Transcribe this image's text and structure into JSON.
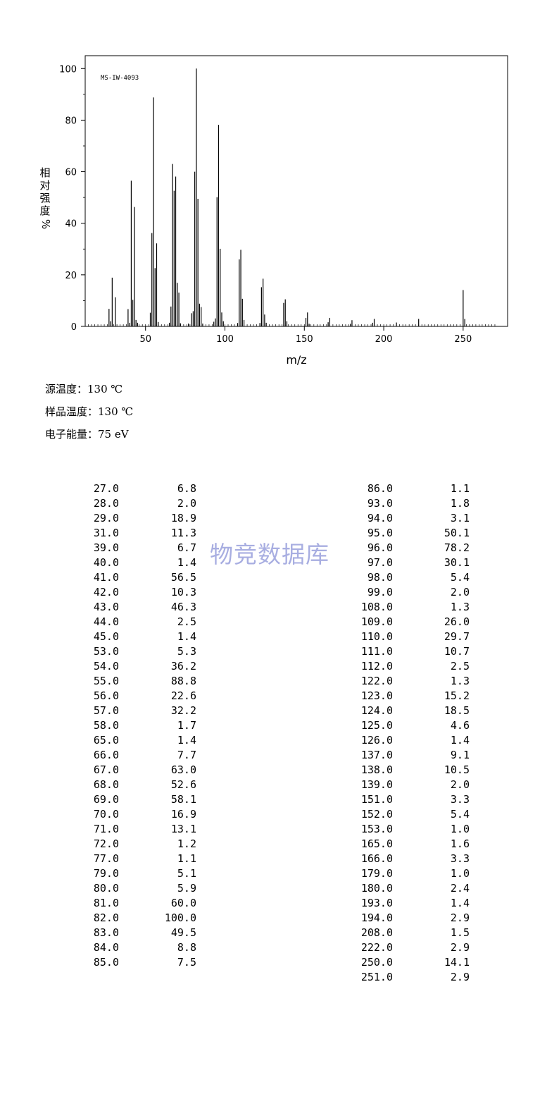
{
  "chart_data": {
    "type": "bar",
    "annotation": "MS-IW-4093",
    "xlabel": "m/z",
    "ylabel": "相对强度%",
    "xlim": [
      12,
      278
    ],
    "ylim": [
      0,
      105
    ],
    "xticks": [
      50,
      100,
      150,
      200,
      250
    ],
    "yticks": [
      0,
      20,
      40,
      60,
      80,
      100
    ],
    "x": [
      27,
      28,
      29,
      31,
      39,
      40,
      41,
      42,
      43,
      44,
      45,
      53,
      54,
      55,
      56,
      57,
      58,
      65,
      66,
      67,
      68,
      69,
      70,
      71,
      72,
      77,
      79,
      80,
      81,
      82,
      83,
      84,
      85,
      86,
      93,
      94,
      95,
      96,
      97,
      98,
      99,
      108,
      109,
      110,
      111,
      112,
      122,
      123,
      124,
      125,
      126,
      137,
      138,
      139,
      151,
      152,
      153,
      165,
      166,
      179,
      180,
      193,
      194,
      208,
      222,
      250,
      251
    ],
    "values": [
      6.8,
      2.0,
      18.9,
      11.3,
      6.7,
      1.4,
      56.5,
      10.3,
      46.3,
      2.5,
      1.4,
      5.3,
      36.2,
      88.8,
      22.6,
      32.2,
      1.7,
      1.4,
      7.7,
      63.0,
      52.6,
      58.1,
      16.9,
      13.1,
      1.2,
      1.1,
      5.1,
      5.9,
      60.0,
      100.0,
      49.5,
      8.8,
      7.5,
      1.1,
      1.8,
      3.1,
      50.1,
      78.2,
      30.1,
      5.4,
      2.0,
      1.3,
      26.0,
      29.7,
      10.7,
      2.5,
      1.3,
      15.2,
      18.5,
      4.6,
      1.4,
      9.1,
      10.5,
      2.0,
      3.3,
      5.4,
      1.0,
      1.6,
      3.3,
      1.0,
      2.4,
      1.4,
      2.9,
      1.5,
      2.9,
      14.1,
      2.9
    ]
  },
  "conditions": {
    "source_temp_label": "源温度：",
    "source_temp_value": "130 ℃",
    "sample_temp_label": "样品温度：",
    "sample_temp_value": "130 ℃",
    "electron_energy_label": "电子能量：",
    "electron_energy_value": "75 eV"
  },
  "peak_table": {
    "left": [
      [
        "27.0",
        "6.8"
      ],
      [
        "28.0",
        "2.0"
      ],
      [
        "29.0",
        "18.9"
      ],
      [
        "31.0",
        "11.3"
      ],
      [
        "39.0",
        "6.7"
      ],
      [
        "40.0",
        "1.4"
      ],
      [
        "41.0",
        "56.5"
      ],
      [
        "42.0",
        "10.3"
      ],
      [
        "43.0",
        "46.3"
      ],
      [
        "44.0",
        "2.5"
      ],
      [
        "45.0",
        "1.4"
      ],
      [
        "53.0",
        "5.3"
      ],
      [
        "54.0",
        "36.2"
      ],
      [
        "55.0",
        "88.8"
      ],
      [
        "56.0",
        "22.6"
      ],
      [
        "57.0",
        "32.2"
      ],
      [
        "58.0",
        "1.7"
      ],
      [
        "65.0",
        "1.4"
      ],
      [
        "66.0",
        "7.7"
      ],
      [
        "67.0",
        "63.0"
      ],
      [
        "68.0",
        "52.6"
      ],
      [
        "69.0",
        "58.1"
      ],
      [
        "70.0",
        "16.9"
      ],
      [
        "71.0",
        "13.1"
      ],
      [
        "72.0",
        "1.2"
      ],
      [
        "77.0",
        "1.1"
      ],
      [
        "79.0",
        "5.1"
      ],
      [
        "80.0",
        "5.9"
      ],
      [
        "81.0",
        "60.0"
      ],
      [
        "82.0",
        "100.0"
      ],
      [
        "83.0",
        "49.5"
      ],
      [
        "84.0",
        "8.8"
      ],
      [
        "85.0",
        "7.5"
      ]
    ],
    "right": [
      [
        "86.0",
        "1.1"
      ],
      [
        "93.0",
        "1.8"
      ],
      [
        "94.0",
        "3.1"
      ],
      [
        "95.0",
        "50.1"
      ],
      [
        "96.0",
        "78.2"
      ],
      [
        "97.0",
        "30.1"
      ],
      [
        "98.0",
        "5.4"
      ],
      [
        "99.0",
        "2.0"
      ],
      [
        "108.0",
        "1.3"
      ],
      [
        "109.0",
        "26.0"
      ],
      [
        "110.0",
        "29.7"
      ],
      [
        "111.0",
        "10.7"
      ],
      [
        "112.0",
        "2.5"
      ],
      [
        "122.0",
        "1.3"
      ],
      [
        "123.0",
        "15.2"
      ],
      [
        "124.0",
        "18.5"
      ],
      [
        "125.0",
        "4.6"
      ],
      [
        "126.0",
        "1.4"
      ],
      [
        "137.0",
        "9.1"
      ],
      [
        "138.0",
        "10.5"
      ],
      [
        "139.0",
        "2.0"
      ],
      [
        "151.0",
        "3.3"
      ],
      [
        "152.0",
        "5.4"
      ],
      [
        "153.0",
        "1.0"
      ],
      [
        "165.0",
        "1.6"
      ],
      [
        "166.0",
        "3.3"
      ],
      [
        "179.0",
        "1.0"
      ],
      [
        "180.0",
        "2.4"
      ],
      [
        "193.0",
        "1.4"
      ],
      [
        "194.0",
        "2.9"
      ],
      [
        "208.0",
        "1.5"
      ],
      [
        "222.0",
        "2.9"
      ],
      [
        "250.0",
        "14.1"
      ],
      [
        "251.0",
        "2.9"
      ]
    ]
  },
  "watermark": "物竞数据库"
}
